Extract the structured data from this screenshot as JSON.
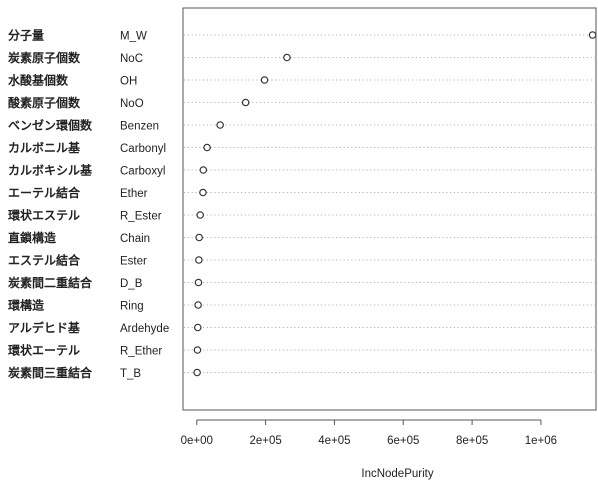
{
  "chart_data": {
    "type": "dotchart",
    "xlabel": "IncNodePurity",
    "ylabel": "",
    "title": "",
    "xlim": [
      -40000,
      1160000
    ],
    "x_ticks": [
      0,
      200000,
      400000,
      600000,
      800000,
      1000000
    ],
    "x_tick_labels": [
      "0e+00",
      "2e+05",
      "4e+05",
      "6e+05",
      "8e+05",
      "1e+06"
    ],
    "grid": "dotted horizontal guides",
    "items": [
      {
        "jp": "分子量",
        "en": "M_W",
        "value": 1150000
      },
      {
        "jp": "炭素原子個数",
        "en": "NoC",
        "value": 262000
      },
      {
        "jp": "水酸基個数",
        "en": "OH",
        "value": 197000
      },
      {
        "jp": "酸素原子個数",
        "en": "NoO",
        "value": 142000
      },
      {
        "jp": "ベンゼン環個数",
        "en": "Benzen",
        "value": 68000
      },
      {
        "jp": "カルボニル基",
        "en": "Carbonyl",
        "value": 30000
      },
      {
        "jp": "カルボキシル基",
        "en": "Carboxyl",
        "value": 19000
      },
      {
        "jp": "エーテル結合",
        "en": "Ether",
        "value": 18000
      },
      {
        "jp": "環状エステル",
        "en": "R_Ester",
        "value": 10000
      },
      {
        "jp": "直鎖構造",
        "en": "Chain",
        "value": 7000
      },
      {
        "jp": "エステル結合",
        "en": "Ester",
        "value": 6000
      },
      {
        "jp": "炭素間二重結合",
        "en": "D_B",
        "value": 5000
      },
      {
        "jp": "環構造",
        "en": "Ring",
        "value": 4000
      },
      {
        "jp": "アルデヒド基",
        "en": "Ardehyde",
        "value": 3000
      },
      {
        "jp": "環状エーテル",
        "en": "R_Ether",
        "value": 2000
      },
      {
        "jp": "炭素間三重結合",
        "en": "T_B",
        "value": 1000
      }
    ]
  }
}
